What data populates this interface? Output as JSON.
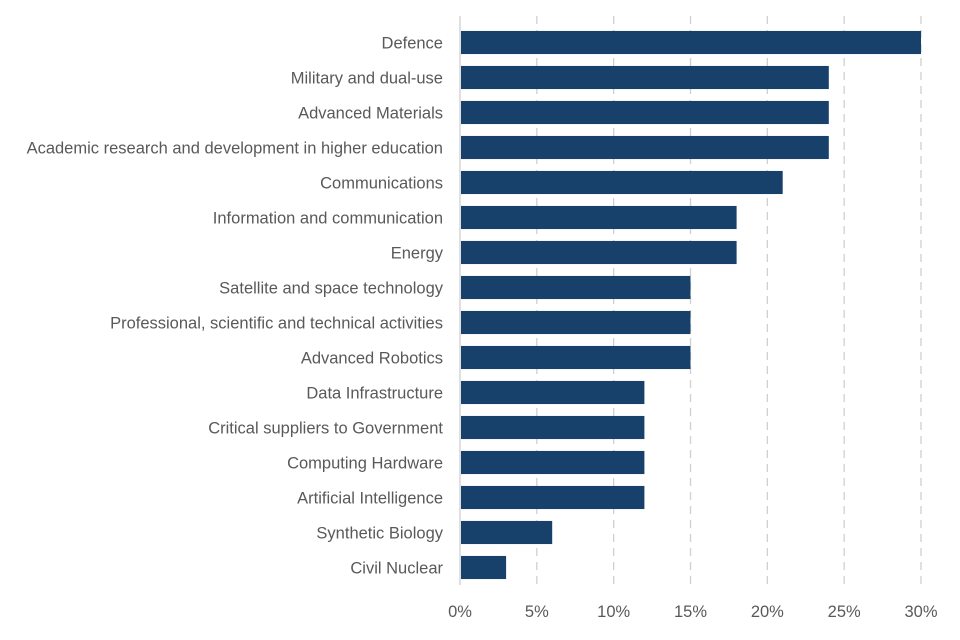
{
  "chart_data": {
    "type": "bar",
    "orientation": "horizontal",
    "title": "",
    "xlabel": "",
    "ylabel": "",
    "categories": [
      "Defence",
      "Military and dual-use",
      "Advanced Materials",
      "Academic research and development in higher education",
      "Communications",
      "Information and communication",
      "Energy",
      "Satellite and space technology",
      "Professional, scientific and technical activities",
      "Advanced Robotics",
      "Data Infrastructure",
      "Critical suppliers to Government",
      "Computing Hardware",
      "Artificial Intelligence",
      "Synthetic Biology",
      "Civil Nuclear"
    ],
    "values": [
      30,
      24,
      24,
      24,
      21,
      18,
      18,
      15,
      15,
      15,
      12,
      12,
      12,
      12,
      6,
      3
    ],
    "xlim": [
      0,
      30
    ],
    "x_ticks": [
      0,
      5,
      10,
      15,
      20,
      25,
      30
    ],
    "x_tick_labels": [
      "0%",
      "5%",
      "10%",
      "15%",
      "20%",
      "25%",
      "30%"
    ],
    "grid": "vertical-dashed",
    "legend": "none",
    "bar_color": "#17406b",
    "grid_color": "#d0d0d0",
    "text_color": "#595959"
  }
}
